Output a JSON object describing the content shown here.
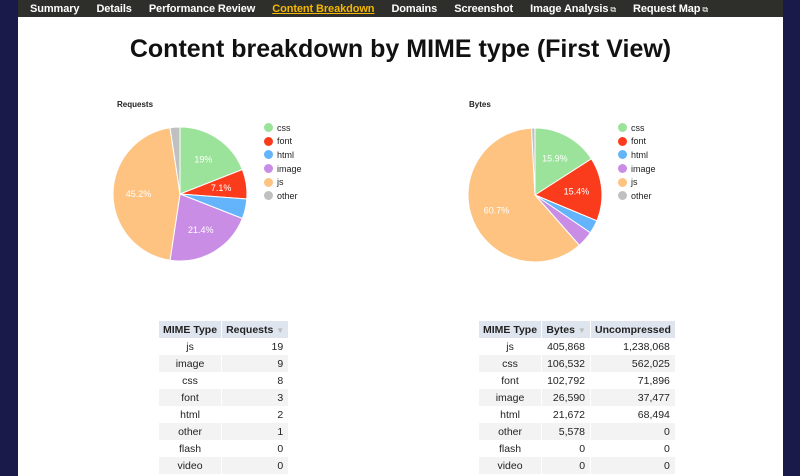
{
  "nav": {
    "items": [
      {
        "label": "Summary",
        "active": false,
        "external": false
      },
      {
        "label": "Details",
        "active": false,
        "external": false
      },
      {
        "label": "Performance Review",
        "active": false,
        "external": false
      },
      {
        "label": "Content Breakdown",
        "active": true,
        "external": false
      },
      {
        "label": "Domains",
        "active": false,
        "external": false
      },
      {
        "label": "Screenshot",
        "active": false,
        "external": false
      },
      {
        "label": "Image Analysis",
        "active": false,
        "external": true
      },
      {
        "label": "Request Map",
        "active": false,
        "external": true
      }
    ],
    "external_icon": "⧉"
  },
  "page_title": "Content breakdown by MIME type (First View)",
  "legend": [
    "css",
    "font",
    "html",
    "image",
    "js",
    "other"
  ],
  "colors": {
    "css": "#9be39a",
    "font": "#fb3c1c",
    "html": "#63b4fb",
    "image": "#c98de6",
    "js": "#fec380",
    "other": "#c0c0c0"
  },
  "chart_data": [
    {
      "type": "pie",
      "title": "Requests",
      "categories": [
        "css",
        "font",
        "html",
        "image",
        "js",
        "other"
      ],
      "values": [
        8,
        3,
        2,
        9,
        19,
        1
      ],
      "percent_labels": [
        "19%",
        "7.1%",
        "",
        "21.4%",
        "45.2%",
        ""
      ],
      "legend_position": "right"
    },
    {
      "type": "pie",
      "title": "Bytes",
      "categories": [
        "css",
        "font",
        "html",
        "image",
        "js",
        "other"
      ],
      "values": [
        106532,
        102792,
        21672,
        26590,
        405868,
        5578
      ],
      "percent_labels": [
        "15.9%",
        "15.4%",
        "",
        "",
        "60.7%",
        ""
      ],
      "legend_position": "right"
    }
  ],
  "requests_table": {
    "headers": [
      "MIME Type",
      "Requests"
    ],
    "sort_icon": "▼",
    "rows": [
      [
        "js",
        "19"
      ],
      [
        "image",
        "9"
      ],
      [
        "css",
        "8"
      ],
      [
        "font",
        "3"
      ],
      [
        "html",
        "2"
      ],
      [
        "other",
        "1"
      ],
      [
        "flash",
        "0"
      ],
      [
        "video",
        "0"
      ]
    ]
  },
  "bytes_table": {
    "headers": [
      "MIME Type",
      "Bytes",
      "Uncompressed"
    ],
    "sort_icon": "▼",
    "rows": [
      [
        "js",
        "405,868",
        "1,238,068"
      ],
      [
        "css",
        "106,532",
        "562,025"
      ],
      [
        "font",
        "102,792",
        "71,896"
      ],
      [
        "image",
        "26,590",
        "37,477"
      ],
      [
        "html",
        "21,672",
        "68,494"
      ],
      [
        "other",
        "5,578",
        "0"
      ],
      [
        "flash",
        "0",
        "0"
      ],
      [
        "video",
        "0",
        "0"
      ]
    ]
  }
}
